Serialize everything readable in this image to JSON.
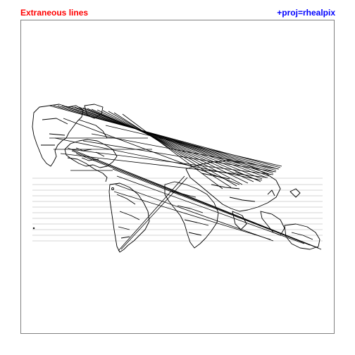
{
  "header": {
    "title": "Extraneous lines",
    "projection": "+proj=rhealpix"
  },
  "colors": {
    "title": "#ff0000",
    "projection": "#0000ff",
    "frame": "#808080",
    "coastline": "#000000",
    "graticule": "#c8c8c8",
    "artifact_lines": "#000000"
  },
  "map": {
    "projection": "rhealpix",
    "content": "world country boundaries",
    "artifacts": "extraneous lines spanning the map"
  }
}
